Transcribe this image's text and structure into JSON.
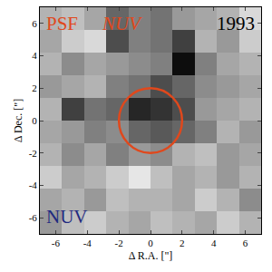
{
  "chart_data": {
    "type": "heatmap",
    "x": [
      -6.3,
      -4.9,
      -3.5,
      -2.1,
      -0.7,
      0.7,
      2.1,
      3.5,
      4.9,
      6.3
    ],
    "y": [
      6.3,
      4.9,
      3.5,
      2.1,
      0.7,
      -0.7,
      -2.1,
      -3.5,
      -4.9,
      -6.3
    ],
    "cells": [
      [
        0.3,
        0.25,
        0.35,
        0.6,
        0.5,
        0.55,
        0.4,
        0.35,
        0.3,
        0.15
      ],
      [
        0.35,
        0.2,
        0.15,
        0.7,
        0.5,
        0.55,
        0.75,
        0.3,
        0.4,
        0.2
      ],
      [
        0.3,
        0.45,
        0.35,
        0.4,
        0.45,
        0.5,
        0.95,
        0.5,
        0.35,
        0.3
      ],
      [
        0.4,
        0.35,
        0.3,
        0.5,
        0.55,
        0.7,
        0.6,
        0.45,
        0.4,
        0.35
      ],
      [
        0.3,
        0.75,
        0.55,
        0.6,
        0.85,
        0.8,
        0.7,
        0.4,
        0.35,
        0.3
      ],
      [
        0.35,
        0.4,
        0.5,
        0.45,
        0.6,
        0.65,
        0.6,
        0.5,
        0.3,
        0.4
      ],
      [
        0.3,
        0.45,
        0.35,
        0.5,
        0.4,
        0.45,
        0.3,
        0.25,
        0.4,
        0.35
      ],
      [
        0.2,
        0.35,
        0.3,
        0.2,
        0.1,
        0.25,
        0.35,
        0.3,
        0.4,
        0.3
      ],
      [
        0.35,
        0.3,
        0.4,
        0.25,
        0.3,
        0.3,
        0.35,
        0.2,
        0.3,
        0.45
      ],
      [
        0.4,
        0.25,
        0.2,
        0.3,
        0.35,
        0.25,
        0.3,
        0.35,
        0.2,
        0.3
      ]
    ],
    "zlim": [
      0,
      1
    ],
    "x_label": "Δ R.A. [\"]",
    "y_label": "Δ Dec. [\"]",
    "xlim": [
      -7,
      7
    ],
    "ylim": [
      -7,
      7
    ],
    "xticks": [
      -6,
      -4,
      -2,
      0,
      2,
      4,
      6
    ],
    "yticks": [
      -6,
      -4,
      -2,
      0,
      2,
      4,
      6
    ],
    "circle": {
      "x": 0,
      "y": 0,
      "radius": 2,
      "color": "#e0481c"
    },
    "annotations": [
      {
        "text": "PSF",
        "color": "#e0481c"
      },
      {
        "text": "NUV",
        "color": "#e0481c"
      },
      {
        "text": "1993",
        "color": "#000000"
      },
      {
        "text": "NUV",
        "color": "#1f2a80"
      }
    ]
  }
}
